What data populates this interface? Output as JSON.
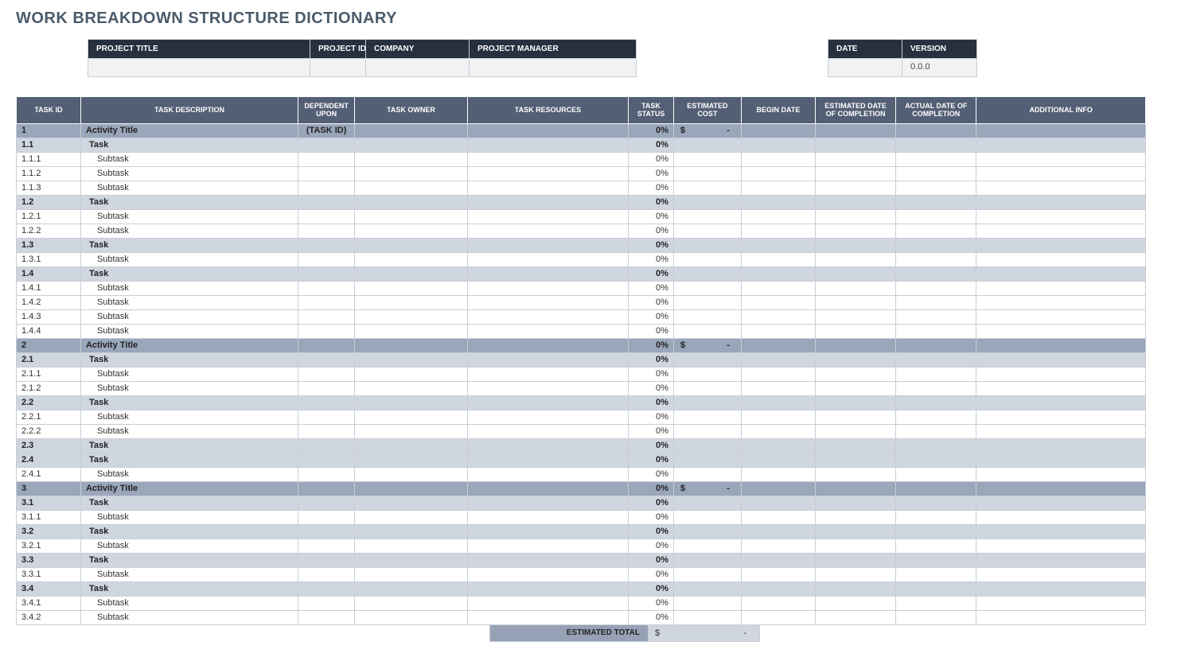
{
  "title": "WORK BREAKDOWN STRUCTURE DICTIONARY",
  "meta": {
    "leftCols": [
      {
        "label": "PROJECT TITLE",
        "value": "",
        "w": "w-title"
      },
      {
        "label": "PROJECT ID",
        "value": "",
        "w": "w-pid"
      },
      {
        "label": "COMPANY",
        "value": "",
        "w": "w-company"
      },
      {
        "label": "PROJECT MANAGER",
        "value": "",
        "w": "w-pm"
      }
    ],
    "rightCols": [
      {
        "label": "DATE",
        "value": "",
        "w": "w-date"
      },
      {
        "label": "VERSION",
        "value": "0.0.0",
        "w": "w-ver"
      }
    ]
  },
  "columns": [
    {
      "key": "id",
      "label": "TASK ID",
      "cls": "c-id"
    },
    {
      "key": "desc",
      "label": "TASK DESCRIPTION",
      "cls": "c-desc"
    },
    {
      "key": "dep",
      "label": "DEPENDENT UPON",
      "cls": "c-dep"
    },
    {
      "key": "owner",
      "label": "TASK OWNER",
      "cls": "c-owner"
    },
    {
      "key": "res",
      "label": "TASK RESOURCES",
      "cls": "c-res"
    },
    {
      "key": "status",
      "label": "TASK STATUS",
      "cls": "c-status"
    },
    {
      "key": "cost",
      "label": "ESTIMATED COST",
      "cls": "c-cost"
    },
    {
      "key": "begin",
      "label": "BEGIN DATE",
      "cls": "c-begin"
    },
    {
      "key": "estd",
      "label": "ESTIMATED DATE OF COMPLETION",
      "cls": "c-estd"
    },
    {
      "key": "actd",
      "label": "ACTUAL DATE OF COMPLETION",
      "cls": "c-actd"
    },
    {
      "key": "info",
      "label": "ADDITIONAL INFO",
      "cls": "c-info"
    }
  ],
  "rows": [
    {
      "level": "activity",
      "id": "1",
      "desc": "Activity Title",
      "dep": "(TASK ID)",
      "status": "0%",
      "cost_cur": "$",
      "cost_amt": "-"
    },
    {
      "level": "task",
      "id": "1.1",
      "desc": "Task",
      "status": "0%"
    },
    {
      "level": "sub",
      "id": "1.1.1",
      "desc": "Subtask",
      "status": "0%"
    },
    {
      "level": "sub",
      "id": "1.1.2",
      "desc": "Subtask",
      "status": "0%"
    },
    {
      "level": "sub",
      "id": "1.1.3",
      "desc": "Subtask",
      "status": "0%"
    },
    {
      "level": "task",
      "id": "1.2",
      "desc": "Task",
      "status": "0%"
    },
    {
      "level": "sub",
      "id": "1.2.1",
      "desc": "Subtask",
      "status": "0%"
    },
    {
      "level": "sub",
      "id": "1.2.2",
      "desc": "Subtask",
      "status": "0%"
    },
    {
      "level": "task",
      "id": "1.3",
      "desc": "Task",
      "status": "0%"
    },
    {
      "level": "sub",
      "id": "1.3.1",
      "desc": "Subtask",
      "status": "0%"
    },
    {
      "level": "task",
      "id": "1.4",
      "desc": "Task",
      "status": "0%"
    },
    {
      "level": "sub",
      "id": "1.4.1",
      "desc": "Subtask",
      "status": "0%"
    },
    {
      "level": "sub",
      "id": "1.4.2",
      "desc": "Subtask",
      "status": "0%"
    },
    {
      "level": "sub",
      "id": "1.4.3",
      "desc": "Subtask",
      "status": "0%"
    },
    {
      "level": "sub",
      "id": "1.4.4",
      "desc": "Subtask",
      "status": "0%"
    },
    {
      "level": "activity",
      "id": "2",
      "desc": "Activity Title",
      "status": "0%",
      "cost_cur": "$",
      "cost_amt": "-"
    },
    {
      "level": "task",
      "id": "2.1",
      "desc": "Task",
      "status": "0%"
    },
    {
      "level": "sub",
      "id": "2.1.1",
      "desc": "Subtask",
      "status": "0%"
    },
    {
      "level": "sub",
      "id": "2.1.2",
      "desc": "Subtask",
      "status": "0%"
    },
    {
      "level": "task",
      "id": "2.2",
      "desc": "Task",
      "status": "0%"
    },
    {
      "level": "sub",
      "id": "2.2.1",
      "desc": "Subtask",
      "status": "0%"
    },
    {
      "level": "sub",
      "id": "2.2.2",
      "desc": "Subtask",
      "status": "0%"
    },
    {
      "level": "task",
      "id": "2.3",
      "desc": "Task",
      "status": "0%"
    },
    {
      "level": "task",
      "id": "2.4",
      "desc": "Task",
      "status": "0%"
    },
    {
      "level": "sub",
      "id": "2.4.1",
      "desc": "Subtask",
      "status": "0%"
    },
    {
      "level": "activity",
      "id": "3",
      "desc": "Activity Title",
      "status": "0%",
      "cost_cur": "$",
      "cost_amt": "-"
    },
    {
      "level": "task",
      "id": "3.1",
      "desc": "Task",
      "status": "0%"
    },
    {
      "level": "sub",
      "id": "3.1.1",
      "desc": "Subtask",
      "status": "0%"
    },
    {
      "level": "task",
      "id": "3.2",
      "desc": "Task",
      "status": "0%"
    },
    {
      "level": "sub",
      "id": "3.2.1",
      "desc": "Subtask",
      "status": "0%"
    },
    {
      "level": "task",
      "id": "3.3",
      "desc": "Task",
      "status": "0%"
    },
    {
      "level": "sub",
      "id": "3.3.1",
      "desc": "Subtask",
      "status": "0%"
    },
    {
      "level": "task",
      "id": "3.4",
      "desc": "Task",
      "status": "0%"
    },
    {
      "level": "sub",
      "id": "3.4.1",
      "desc": "Subtask",
      "status": "0%"
    },
    {
      "level": "sub",
      "id": "3.4.2",
      "desc": "Subtask",
      "status": "0%"
    }
  ],
  "totals": {
    "label": "ESTIMATED TOTAL",
    "currency": "$",
    "amount": "-"
  },
  "colors": {
    "header_dark": "#26303f",
    "table_header": "#525f74",
    "activity_row": "#9aa6ba",
    "task_row": "#cfd6e0",
    "sub_row": "#ffffff",
    "border": "#c9ced4",
    "title_text": "#4a5a6a"
  }
}
